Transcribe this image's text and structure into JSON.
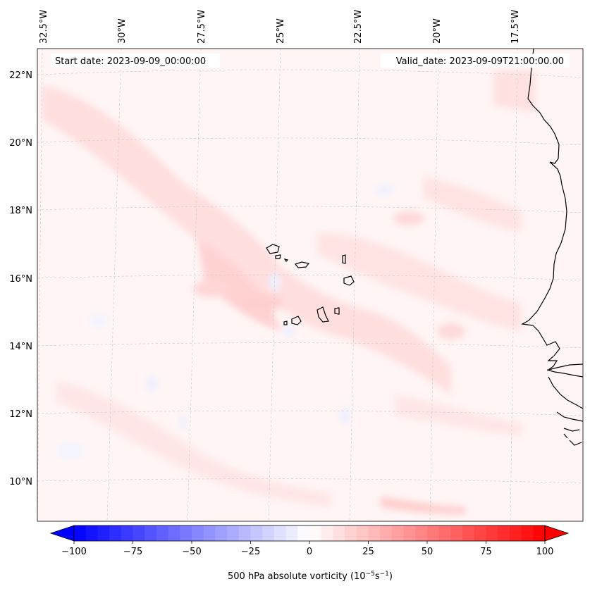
{
  "map": {
    "annotations": {
      "start_date": "Start date: 2023-09-09_00:00:00",
      "valid_date": "Valid_date: 2023-09-09T21:00:00.00"
    },
    "lon_labels": [
      "32.5°W",
      "30°W",
      "27.5°W",
      "25°W",
      "22.5°W",
      "20°W",
      "17.5°W"
    ],
    "lat_labels": [
      "22°N",
      "20°N",
      "18°N",
      "16°N",
      "14°N",
      "12°N",
      "10°N"
    ],
    "colorbar": {
      "ticks": [
        "−100",
        "−75",
        "−50",
        "−25",
        "0",
        "25",
        "50",
        "75",
        "100"
      ],
      "tick_values": [
        -100,
        -75,
        -50,
        -25,
        0,
        25,
        50,
        75,
        100
      ],
      "range": [
        -100,
        100
      ],
      "n_levels": 40,
      "label_prefix": "500 hPa absolute vorticity (10",
      "label_exp1": "−5",
      "label_mid": "s",
      "label_exp2": "−1",
      "label_suffix": ")",
      "colormap": "bwr",
      "extend": "both"
    },
    "colors": {
      "negative": "#0000ff",
      "zero": "#ffffff",
      "positive": "#ff0000",
      "background_field": "#fff5f5",
      "coast": "#000000",
      "grid": "#c8c8c8"
    }
  }
}
